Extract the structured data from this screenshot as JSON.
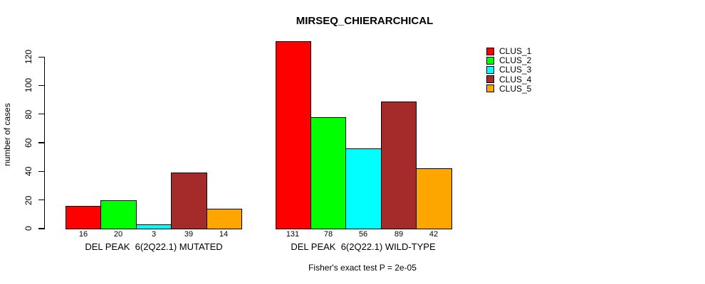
{
  "chart_data": {
    "type": "bar",
    "title": "MIRSEQ_CHIERARCHICAL",
    "ylabel": "number of cases",
    "yticks": [
      0,
      20,
      40,
      60,
      80,
      100,
      120
    ],
    "ylim": [
      0,
      131
    ],
    "grid": false,
    "legend_position": "top-right",
    "legend": [
      {
        "label": "CLUS_1",
        "color": "#FF0000"
      },
      {
        "label": "CLUS_2",
        "color": "#00FF00"
      },
      {
        "label": "CLUS_3",
        "color": "#00FFFF"
      },
      {
        "label": "CLUS_4",
        "color": "#A52A2A"
      },
      {
        "label": "CLUS_5",
        "color": "#FFA500"
      }
    ],
    "groups": [
      {
        "label": "DEL PEAK  6(2Q22.1) MUTATED",
        "values": [
          16,
          20,
          3,
          39,
          14
        ]
      },
      {
        "label": "DEL PEAK  6(2Q22.1) WILD-TYPE",
        "values": [
          131,
          78,
          56,
          89,
          42
        ]
      }
    ],
    "annotation": "Fisher's exact test P = 2e-05"
  }
}
